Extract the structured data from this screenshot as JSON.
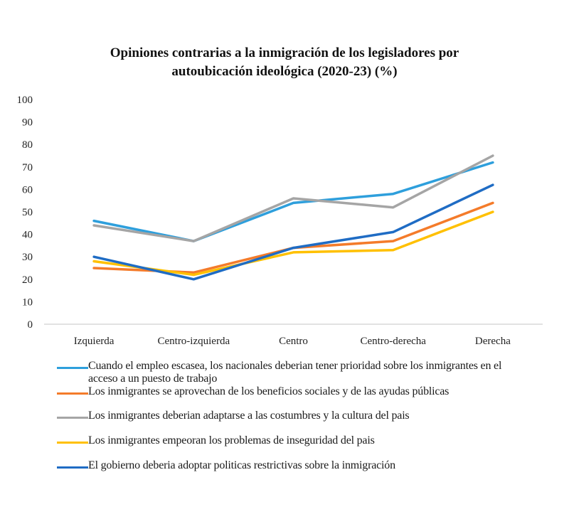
{
  "chart_data": {
    "type": "line",
    "title_lines": [
      "Opiniones  contrarias  a la inmigración  de los legisladores por",
      "autoubicación  ideológica (2020-23) (%)"
    ],
    "xlabel": "",
    "ylabel": "",
    "categories": [
      "Izquierda",
      "Centro-izquierda",
      "Centro",
      "Centro-derecha",
      "Derecha"
    ],
    "ylim": [
      0,
      100
    ],
    "yticks": [
      0,
      10,
      20,
      30,
      40,
      50,
      60,
      70,
      80,
      90,
      100
    ],
    "grid": false,
    "legend_position": "bottom",
    "series": [
      {
        "name": "Cuando el empleo escasea, los nacionales deberian tener prioridad sobre los inmigrantes en el acceso a un puesto de trabajo",
        "color": "#2e9fdc",
        "values": [
          46,
          37,
          54,
          58,
          72
        ]
      },
      {
        "name": "Los inmigrantes se aprovechan de los beneficios sociales y de las ayudas públicas",
        "color": "#f47b2a",
        "values": [
          25,
          23,
          34,
          37,
          54
        ]
      },
      {
        "name": "Los inmigrantes deberian adaptarse a las costumbres y la cultura del pais",
        "color": "#a5a5a5",
        "values": [
          44,
          37,
          56,
          52,
          75
        ]
      },
      {
        "name": "Los inmigrantes empeoran los problemas de inseguridad del pais",
        "color": "#ffc000",
        "values": [
          28,
          22,
          32,
          33,
          50
        ]
      },
      {
        "name": "El gobierno deberia adoptar politicas restrictivas sobre la inmigración",
        "color": "#1f6cc4",
        "values": [
          30,
          20,
          34,
          41,
          62
        ]
      }
    ]
  }
}
